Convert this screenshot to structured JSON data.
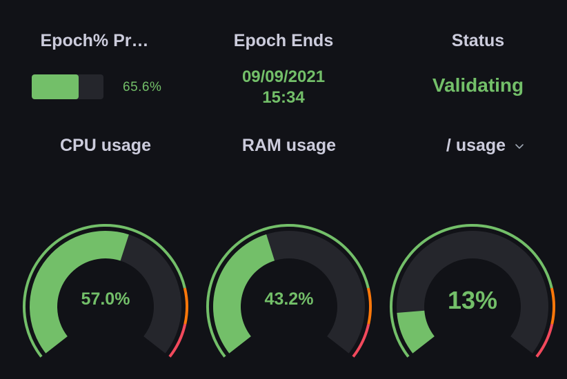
{
  "epoch_panel": {
    "title": "Epoch% Pr…",
    "progress_label": "65.6%",
    "progress_fraction": 0.656,
    "fill_color": "#73bf69",
    "track_color": "#25262c"
  },
  "epoch_ends_panel": {
    "title": "Epoch Ends",
    "date": "09/09/2021",
    "time": "15:34",
    "value_color": "#73bf69"
  },
  "status_panel": {
    "title": "Status",
    "value": "Validating",
    "value_color": "#73bf69"
  },
  "gauges": [
    {
      "id": "cpu",
      "title": "CPU usage",
      "value_label": "57.0%",
      "value": 57.0,
      "min": 0,
      "max": 100,
      "value_font": "small",
      "has_menu": false
    },
    {
      "id": "ram",
      "title": "RAM usage",
      "value_label": "43.2%",
      "value": 43.2,
      "min": 0,
      "max": 100,
      "value_font": "small",
      "has_menu": false
    },
    {
      "id": "disk",
      "title": "/ usage",
      "value_label": "13%",
      "value": 13,
      "min": 0,
      "max": 100,
      "value_font": "large",
      "has_menu": true,
      "menu_icon": "chevron-down-icon"
    }
  ],
  "thresholds": [
    {
      "from": 0,
      "to": 80,
      "color": "#73bf69"
    },
    {
      "from": 80,
      "to": 90,
      "color": "#ff780a"
    },
    {
      "from": 90,
      "to": 100,
      "color": "#f2495c"
    }
  ],
  "colors": {
    "background": "#111217",
    "gauge_track": "#25262c",
    "gauge_fill": "#73bf69",
    "title_text": "#ccccdc"
  }
}
